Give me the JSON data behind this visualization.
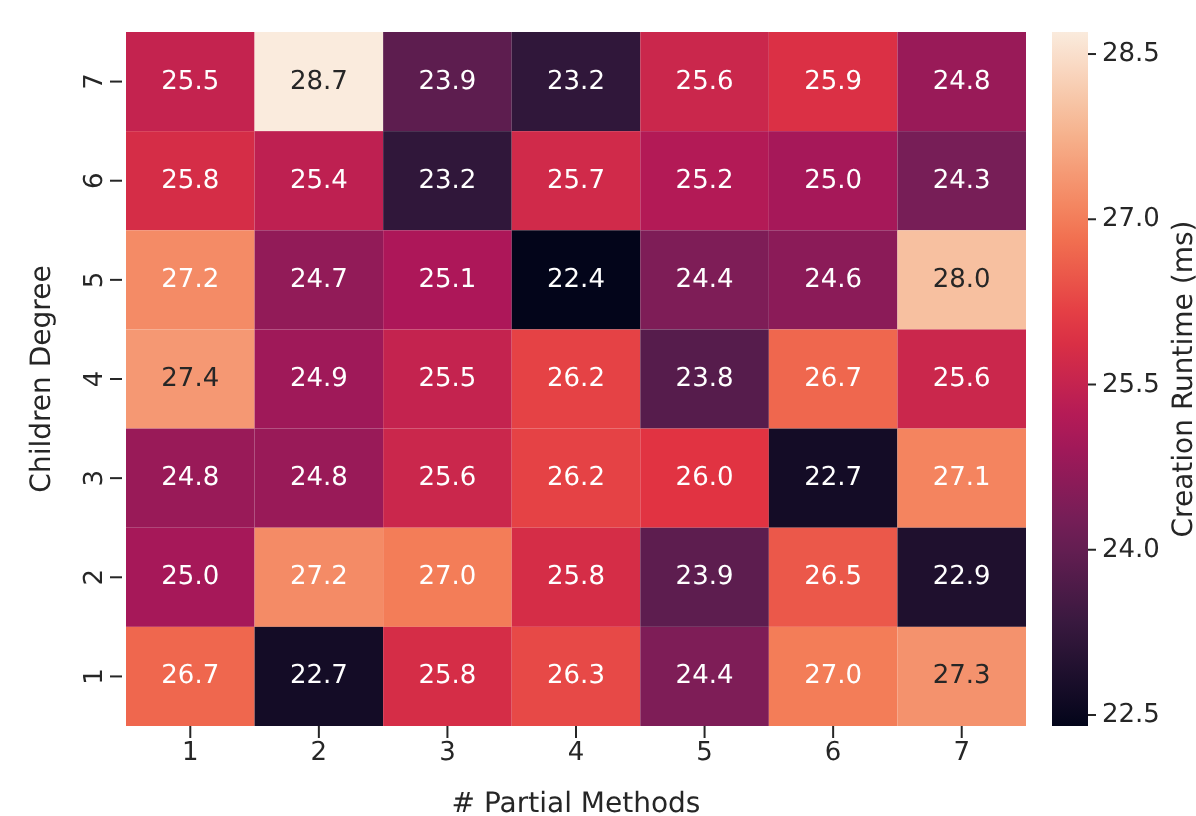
{
  "chart_data": {
    "type": "heatmap",
    "xlabel": "# Partial Methods",
    "ylabel": "Children Degree",
    "clabel": "Creation Runtime (ms)",
    "categories": [
      "1",
      "2",
      "3",
      "4",
      "5",
      "6",
      "7"
    ],
    "y_categories": [
      "7",
      "6",
      "5",
      "4",
      "3",
      "2",
      "1"
    ],
    "cells": [
      [
        25.5,
        28.7,
        23.9,
        23.2,
        25.6,
        25.9,
        24.8
      ],
      [
        25.8,
        25.4,
        23.2,
        25.7,
        25.2,
        25.0,
        24.3
      ],
      [
        27.2,
        24.7,
        25.1,
        22.4,
        24.4,
        24.6,
        28.0
      ],
      [
        27.4,
        24.9,
        25.5,
        26.2,
        23.8,
        26.7,
        25.6
      ],
      [
        24.8,
        24.8,
        25.6,
        26.2,
        26.0,
        22.7,
        27.1
      ],
      [
        25.0,
        27.2,
        27.0,
        25.8,
        23.9,
        26.5,
        22.9
      ],
      [
        26.7,
        22.7,
        25.8,
        26.3,
        24.4,
        27.0,
        27.3
      ]
    ],
    "cell_labels": [
      [
        "25.5",
        "28.7",
        "23.9",
        "23.2",
        "25.6",
        "25.9",
        "24.8"
      ],
      [
        "25.8",
        "25.4",
        "23.2",
        "25.7",
        "25.2",
        "25.0",
        "24.3"
      ],
      [
        "27.2",
        "24.7",
        "25.1",
        "22.4",
        "24.4",
        "24.6",
        "28.0"
      ],
      [
        "27.4",
        "24.9",
        "25.5",
        "26.2",
        "23.8",
        "26.7",
        "25.6"
      ],
      [
        "24.8",
        "24.8",
        "25.6",
        "26.2",
        "26.0",
        "22.7",
        "27.1"
      ],
      [
        "25.0",
        "27.2",
        "27.0",
        "25.8",
        "23.9",
        "26.5",
        "22.9"
      ],
      [
        "26.7",
        "22.7",
        "25.8",
        "26.3",
        "24.4",
        "27.0",
        "27.3"
      ]
    ],
    "clim": [
      22.4,
      28.7
    ],
    "cticks": [
      22.5,
      {
        "value": 24,
        "label": "24.0"
      },
      25.5,
      {
        "value": 27,
        "label": "27.0"
      },
      28.5
    ]
  }
}
